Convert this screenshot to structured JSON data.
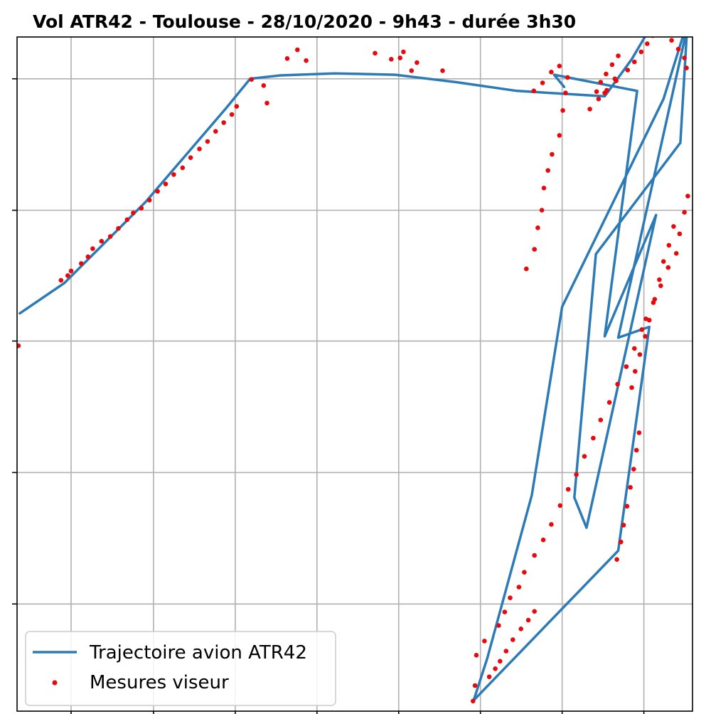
{
  "chart_data": {
    "type": "line",
    "title": "Vol ATR42 - Toulouse - 28/10/2020 -  9h43 - durée 3h30",
    "xlabel": "",
    "ylabel": "",
    "xlim": [
      0,
      100
    ],
    "ylim": [
      0,
      100
    ],
    "x_gridlines": [
      8,
      20.2,
      32.3,
      44.4,
      56.5,
      68.6,
      80.7,
      92.8
    ],
    "y_gridlines": [
      15.9,
      35.4,
      54.9,
      74.3,
      93.8
    ],
    "grid": true,
    "legend_position": "bottom-left",
    "colors": {
      "line": "#2d7bb6",
      "points": "#e8090c",
      "grid": "#b0b0b0",
      "frame": "#000000"
    },
    "series": [
      {
        "name": "Trajectoire avion ATR42",
        "type": "line",
        "x": [
          0.4,
          7,
          19,
          31,
          34.5,
          39,
          47,
          56,
          65,
          74,
          87,
          91,
          95,
          99.2,
          95.7,
          80.7,
          76.2,
          69.6,
          67.6,
          89,
          93.6,
          89,
          99.2,
          98.2,
          85.7,
          82.5,
          84.3,
          94.6,
          87,
          91.8,
          79.5,
          81
        ],
        "y": [
          59,
          63.5,
          75.5,
          89.5,
          93.8,
          94.3,
          94.6,
          94.4,
          93.3,
          92,
          91.2,
          96.7,
          103.5,
          102.1,
          90.8,
          60,
          32,
          7.8,
          1.6,
          23.8,
          57,
          55.4,
          101.3,
          84.3,
          67.8,
          31.7,
          27.2,
          73.6,
          55.6,
          92,
          94.4,
          92.6
        ]
      },
      {
        "name": "Mesures viseur",
        "type": "scatter",
        "x": [
          0.2,
          6.5,
          7.5,
          8,
          9.5,
          10.5,
          11.2,
          12.5,
          13.8,
          15,
          16.3,
          17.2,
          18.4,
          19.6,
          20.8,
          22,
          23.2,
          24.5,
          25.7,
          27,
          28.2,
          29.4,
          30.6,
          31.8,
          32.5,
          40,
          41.5,
          42.8,
          53,
          55.4,
          57.2,
          58.4,
          59.2,
          63,
          56.7,
          76.5,
          77.8,
          79.1,
          80.3,
          81.5,
          81.2,
          80.8,
          80.3,
          79.2,
          78.6,
          78,
          77.7,
          77.1,
          76.6,
          75.4,
          68,
          69.2,
          71.3,
          72.2,
          73,
          74.3,
          75.1,
          76.6,
          77.9,
          79.1,
          80.4,
          81.6,
          82.8,
          84,
          85.3,
          86.4,
          87.7,
          88.9,
          90.2,
          91.4,
          92.5,
          93.1,
          94.2,
          95.3,
          96.4,
          97.6,
          98.1,
          98.8,
          99.3,
          91,
          91.5,
          92.2,
          93,
          93.6,
          94.4,
          95.1,
          95.7,
          96.5,
          97.2,
          92.1,
          91.7,
          91.3,
          90.8,
          90.3,
          89.8,
          89.4,
          88.8,
          85.8,
          86.4,
          87.2,
          88.1,
          89,
          88.5,
          87.3,
          86.1,
          84.8,
          67.5,
          67.8,
          69.9,
          70.8,
          71.5,
          72.4,
          73.4,
          74.6,
          75.7,
          76.6,
          87,
          88.7,
          90.4,
          91.4,
          92.4,
          93.3,
          94.1,
          94.9,
          95.9,
          96.9,
          97.9,
          98.8,
          99.1,
          37,
          34.7,
          36.5
        ],
        "y": [
          54.2,
          63.9,
          64.6,
          65.3,
          66.4,
          67.4,
          68.6,
          69.7,
          70.4,
          71.6,
          72.9,
          73.9,
          74.6,
          75.8,
          77.1,
          78.2,
          79.6,
          80.6,
          82.1,
          83.4,
          84.5,
          86,
          87.3,
          88.5,
          89.7,
          96.8,
          98.1,
          96.5,
          97.6,
          96.7,
          97.8,
          95,
          96.2,
          95,
          96.9,
          92,
          93.2,
          94.8,
          95.7,
          94,
          91.7,
          89.1,
          85.4,
          82.6,
          80.2,
          77.6,
          74.3,
          71.7,
          68.5,
          65.6,
          8.3,
          10.4,
          12.7,
          14.7,
          16.8,
          18.4,
          20.6,
          23.1,
          25.4,
          27.7,
          30.5,
          32.9,
          35.1,
          37.8,
          40.5,
          43.2,
          45.8,
          48.5,
          51.1,
          53.8,
          56.6,
          58.2,
          60.6,
          63.1,
          65.8,
          67.9,
          70.8,
          74,
          76.4,
          48,
          50.4,
          52.9,
          55.6,
          58,
          61.1,
          64,
          66.7,
          69.1,
          71.9,
          41.3,
          38.7,
          35.9,
          33.2,
          30.4,
          27.6,
          25.1,
          22.5,
          91.9,
          93.3,
          94.5,
          95.9,
          97.2,
          93.8,
          92.1,
          90.8,
          89.3,
          1.5,
          3.8,
          5.1,
          6.3,
          7.4,
          8.9,
          10.6,
          12.2,
          13.5,
          14.8,
          91.7,
          93.5,
          95.1,
          96.3,
          97.8,
          99,
          100.2,
          101.3,
          102.7,
          99.5,
          98.2,
          96.9,
          95.4,
          90.2,
          93.7,
          92.8
        ]
      }
    ]
  }
}
